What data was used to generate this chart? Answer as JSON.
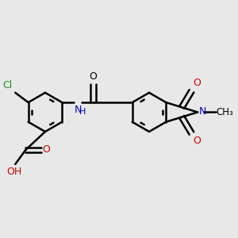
{
  "bg_color": "#e8e8e8",
  "bond_color": "#000000",
  "bond_width": 1.8,
  "figsize": [
    3.0,
    3.0
  ],
  "dpi": 100,
  "atom_colors": {
    "O": "#cc0000",
    "N": "#0000cc",
    "Cl": "#228B22",
    "C": "#000000",
    "H": "#cc0000"
  }
}
